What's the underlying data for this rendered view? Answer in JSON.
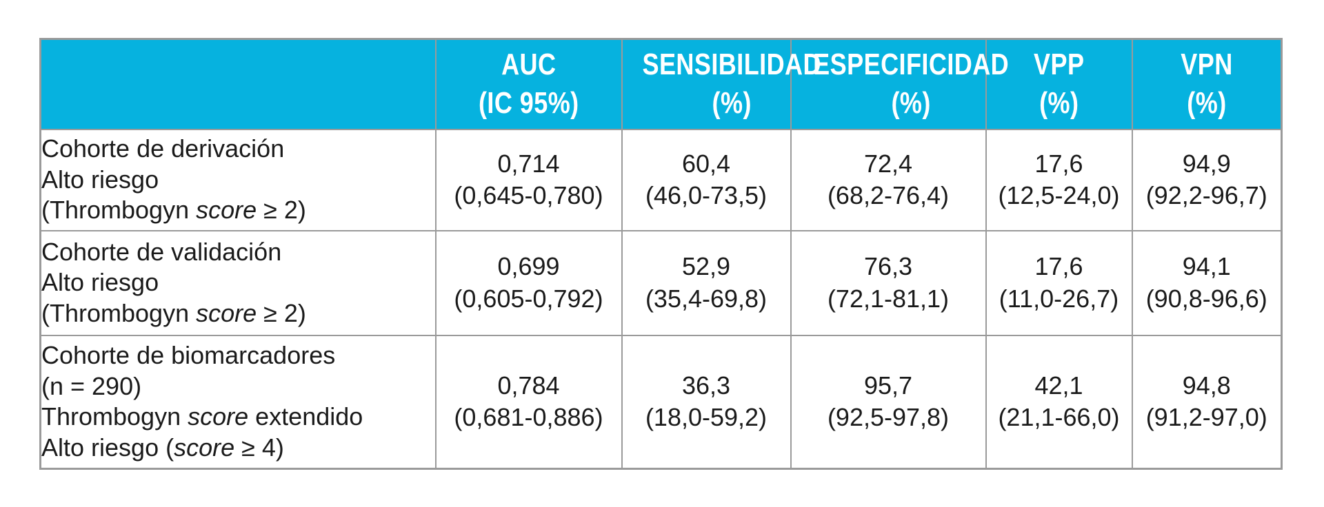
{
  "colors": {
    "header_bg": "#06B2DF",
    "header_text": "#FFFFFF",
    "border": "#9A9A9A",
    "body_text": "#1A1A1A",
    "page_bg": "#FFFFFF"
  },
  "table": {
    "header": {
      "row_label_column": "",
      "columns": [
        {
          "line1": "AUC",
          "line2": "(IC 95%)"
        },
        {
          "line1": "SENSIBILIDAD",
          "line2": "(%)"
        },
        {
          "line1": "ESPECIFICIDAD",
          "line2": "(%)"
        },
        {
          "line1": "VPP",
          "line2": "(%)"
        },
        {
          "line1": "VPN",
          "line2": "(%)"
        }
      ]
    },
    "rows": [
      {
        "label_lines": [
          [
            {
              "t": "Cohorte de derivación"
            }
          ],
          [
            {
              "t": "Alto riesgo"
            }
          ],
          [
            {
              "t": "(Thrombogyn "
            },
            {
              "t": "score",
              "i": true
            },
            {
              "t": " ≥ 2)"
            }
          ]
        ],
        "cells": [
          {
            "value": "0,714",
            "ci": "(0,645-0,780)"
          },
          {
            "value": "60,4",
            "ci": "(46,0-73,5)"
          },
          {
            "value": "72,4",
            "ci": "(68,2-76,4)"
          },
          {
            "value": "17,6",
            "ci": "(12,5-24,0)"
          },
          {
            "value": "94,9",
            "ci": "(92,2-96,7)"
          }
        ]
      },
      {
        "label_lines": [
          [
            {
              "t": "Cohorte de validación"
            }
          ],
          [
            {
              "t": "Alto riesgo"
            }
          ],
          [
            {
              "t": "(Thrombogyn "
            },
            {
              "t": "score",
              "i": true
            },
            {
              "t": " ≥ 2)"
            }
          ]
        ],
        "cells": [
          {
            "value": "0,699",
            "ci": "(0,605-0,792)"
          },
          {
            "value": "52,9",
            "ci": "(35,4-69,8)"
          },
          {
            "value": "76,3",
            "ci": "(72,1-81,1)"
          },
          {
            "value": "17,6",
            "ci": "(11,0-26,7)"
          },
          {
            "value": "94,1",
            "ci": "(90,8-96,6)"
          }
        ]
      },
      {
        "label_lines": [
          [
            {
              "t": "Cohorte de biomarcadores"
            }
          ],
          [
            {
              "t": "(n = 290)"
            }
          ],
          [
            {
              "t": "Thrombogyn "
            },
            {
              "t": "score",
              "i": true
            },
            {
              "t": " extendido"
            }
          ],
          [
            {
              "t": "Alto riesgo ("
            },
            {
              "t": "score",
              "i": true
            },
            {
              "t": " ≥ 4)"
            }
          ]
        ],
        "cells": [
          {
            "value": "0,784",
            "ci": "(0,681-0,886)"
          },
          {
            "value": "36,3",
            "ci": "(18,0-59,2)"
          },
          {
            "value": "95,7",
            "ci": "(92,5-97,8)"
          },
          {
            "value": "42,1",
            "ci": "(21,1-66,0)"
          },
          {
            "value": "94,8",
            "ci": "(91,2-97,0)"
          }
        ]
      }
    ]
  }
}
